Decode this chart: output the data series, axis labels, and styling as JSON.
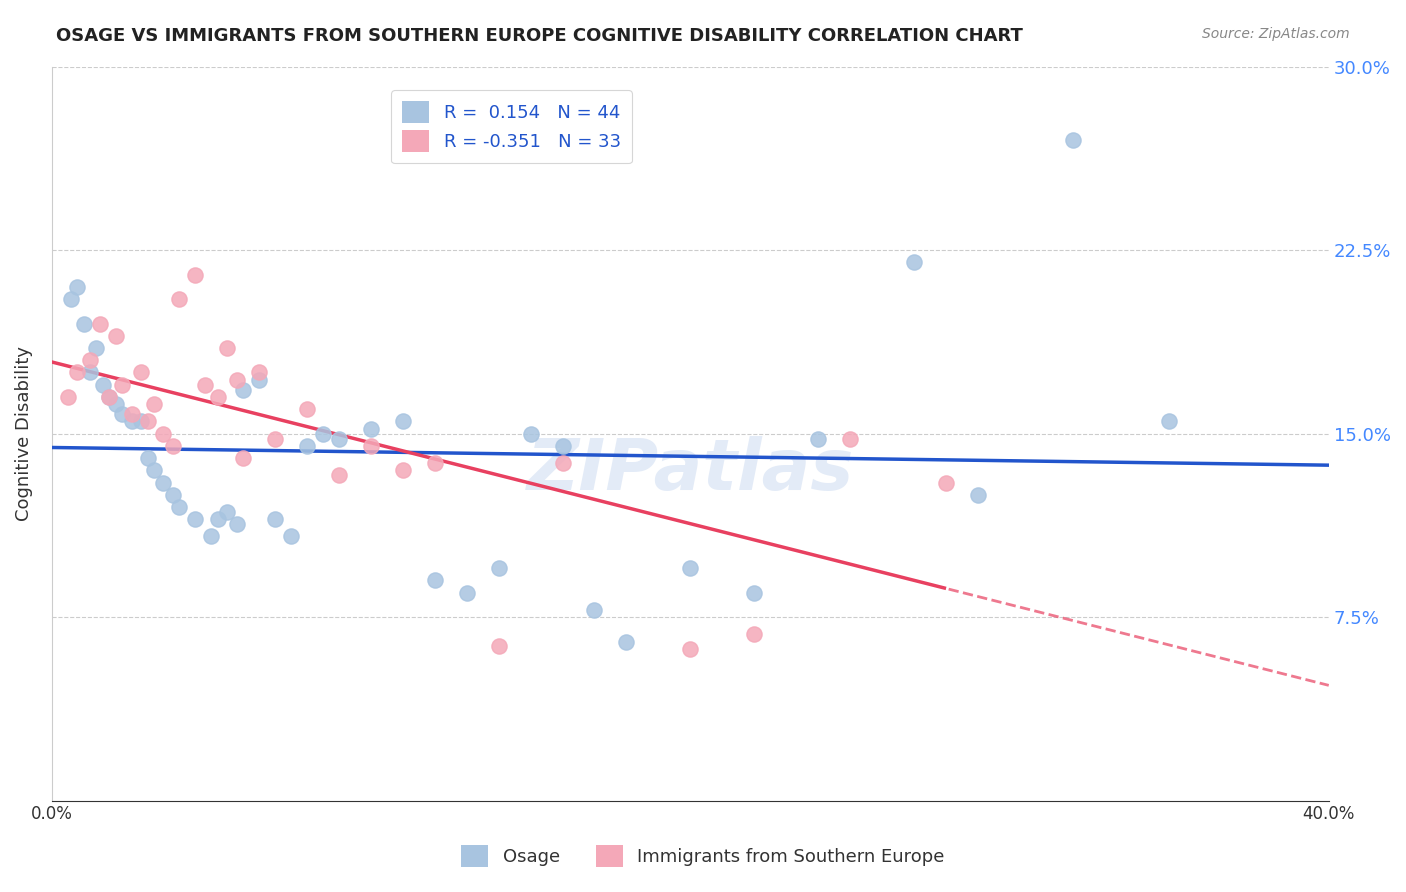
{
  "title": "OSAGE VS IMMIGRANTS FROM SOUTHERN EUROPE COGNITIVE DISABILITY CORRELATION CHART",
  "source": "Source: ZipAtlas.com",
  "xlabel_bottom": "",
  "ylabel": "Cognitive Disability",
  "x_min": 0.0,
  "x_max": 0.4,
  "y_min": 0.0,
  "y_max": 0.3,
  "x_ticks": [
    0.0,
    0.05,
    0.1,
    0.15,
    0.2,
    0.25,
    0.3,
    0.35,
    0.4
  ],
  "x_tick_labels": [
    "0.0%",
    "",
    "",
    "",
    "",
    "",
    "",
    "",
    "40.0%"
  ],
  "y_ticks": [
    0.0,
    0.075,
    0.15,
    0.225,
    0.3
  ],
  "y_tick_labels": [
    "",
    "7.5%",
    "15.0%",
    "22.5%",
    "30.0%"
  ],
  "osage_R": 0.154,
  "osage_N": 44,
  "immigrants_R": -0.351,
  "immigrants_N": 33,
  "osage_color": "#a8c4e0",
  "immigrants_color": "#f4a8b8",
  "osage_line_color": "#2255cc",
  "immigrants_line_color": "#e84060",
  "watermark": "ZIPatlas",
  "osage_x": [
    0.006,
    0.008,
    0.01,
    0.012,
    0.014,
    0.016,
    0.018,
    0.02,
    0.022,
    0.025,
    0.028,
    0.03,
    0.032,
    0.035,
    0.038,
    0.04,
    0.045,
    0.05,
    0.052,
    0.055,
    0.058,
    0.06,
    0.065,
    0.07,
    0.075,
    0.08,
    0.085,
    0.09,
    0.1,
    0.11,
    0.12,
    0.13,
    0.14,
    0.15,
    0.16,
    0.17,
    0.18,
    0.2,
    0.22,
    0.24,
    0.27,
    0.29,
    0.32,
    0.35
  ],
  "osage_y": [
    0.205,
    0.21,
    0.195,
    0.175,
    0.185,
    0.17,
    0.165,
    0.162,
    0.158,
    0.155,
    0.155,
    0.14,
    0.135,
    0.13,
    0.125,
    0.12,
    0.115,
    0.108,
    0.115,
    0.118,
    0.113,
    0.168,
    0.172,
    0.115,
    0.108,
    0.145,
    0.15,
    0.148,
    0.152,
    0.155,
    0.09,
    0.085,
    0.095,
    0.15,
    0.145,
    0.078,
    0.065,
    0.095,
    0.085,
    0.148,
    0.22,
    0.125,
    0.27,
    0.155
  ],
  "immigrants_x": [
    0.005,
    0.008,
    0.012,
    0.015,
    0.018,
    0.02,
    0.022,
    0.025,
    0.028,
    0.03,
    0.032,
    0.035,
    0.038,
    0.04,
    0.045,
    0.048,
    0.052,
    0.055,
    0.058,
    0.06,
    0.065,
    0.07,
    0.08,
    0.09,
    0.1,
    0.11,
    0.12,
    0.14,
    0.16,
    0.2,
    0.22,
    0.25,
    0.28
  ],
  "immigrants_y": [
    0.165,
    0.175,
    0.18,
    0.195,
    0.165,
    0.19,
    0.17,
    0.158,
    0.175,
    0.155,
    0.162,
    0.15,
    0.145,
    0.205,
    0.215,
    0.17,
    0.165,
    0.185,
    0.172,
    0.14,
    0.175,
    0.148,
    0.16,
    0.133,
    0.145,
    0.135,
    0.138,
    0.063,
    0.138,
    0.062,
    0.068,
    0.148,
    0.13
  ]
}
